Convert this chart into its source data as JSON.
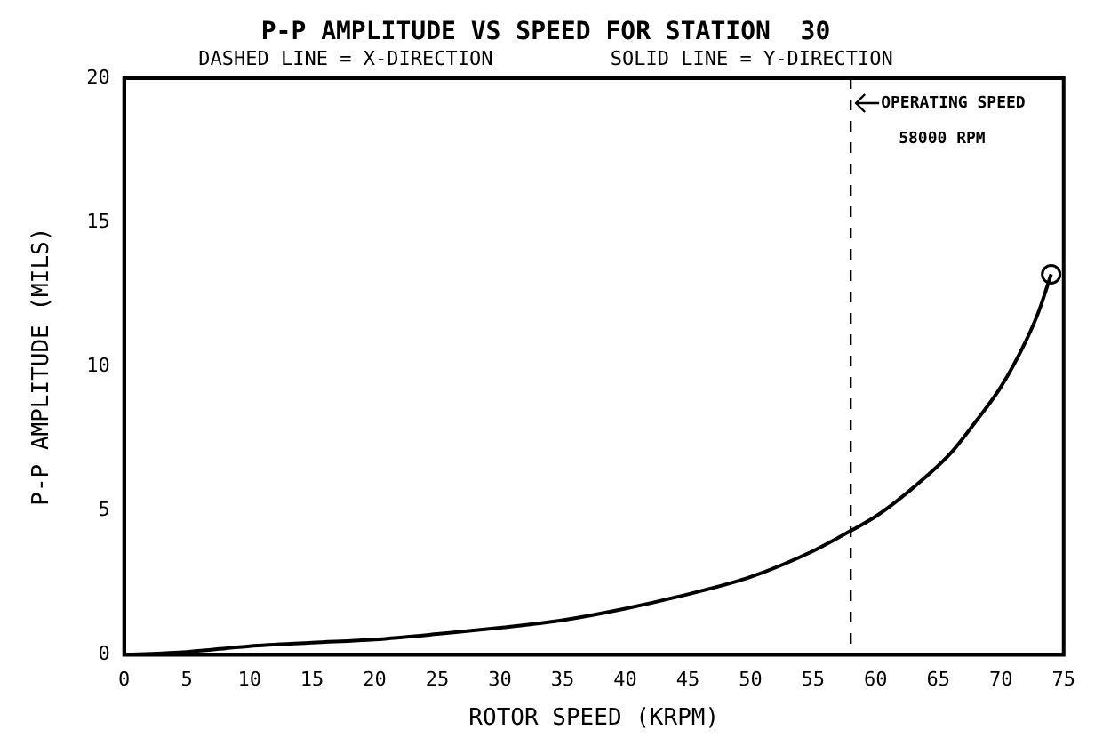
{
  "chart_data": {
    "type": "line",
    "title": "P-P AMPLITUDE VS SPEED FOR STATION  30",
    "subtitle": "DASHED LINE = X-DIRECTION          SOLID LINE = Y-DIRECTION",
    "xlabel": "ROTOR SPEED (KRPM)",
    "ylabel": "P-P AMPLITUDE (MILS)",
    "x": [
      0,
      5,
      10,
      15,
      20,
      25,
      30,
      35,
      40,
      45,
      50,
      55,
      58,
      60,
      63,
      66,
      68,
      70,
      72,
      73,
      74
    ],
    "series": [
      {
        "color": "#000000",
        "line_style": "solid",
        "values": [
          0,
          0.1,
          0.3,
          0.42,
          0.53,
          0.72,
          0.94,
          1.2,
          1.6,
          2.1,
          2.7,
          3.6,
          4.3,
          4.8,
          5.8,
          7.0,
          8.1,
          9.3,
          10.9,
          11.9,
          13.2
        ]
      },
      {
        "type": "scatter",
        "marker": "circle",
        "color": "#000000",
        "x": [
          74
        ],
        "values": [
          13.2
        ]
      }
    ],
    "xlim": [
      0,
      75
    ],
    "xticks": [
      0,
      5,
      10,
      15,
      20,
      25,
      30,
      35,
      40,
      45,
      50,
      55,
      60,
      65,
      70,
      75
    ],
    "ylim": [
      0,
      20
    ],
    "yticks": [
      0,
      5,
      10,
      15,
      20
    ],
    "ref_lines": [
      {
        "axis": "x",
        "value": 58,
        "label": "OPERATING SPEED\n58000 RPM",
        "line_style": "dashed",
        "color": "#000000"
      }
    ],
    "legend": false
  }
}
